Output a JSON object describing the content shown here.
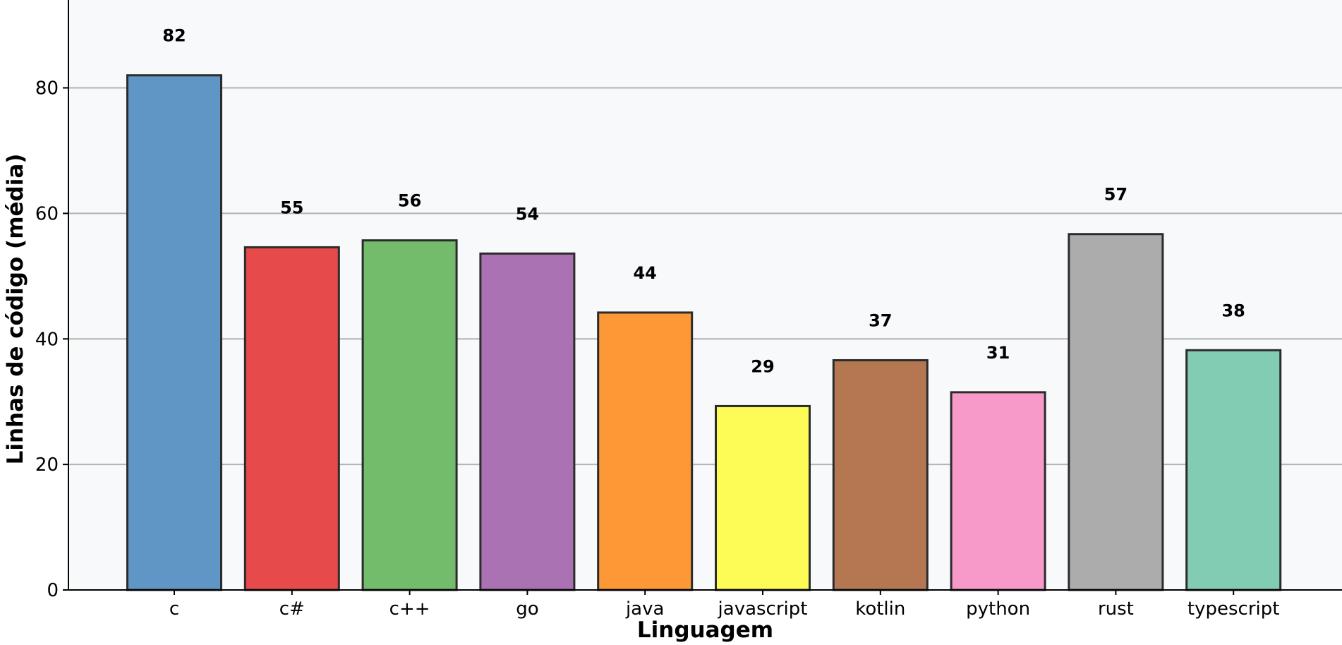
{
  "chart_data": {
    "type": "bar",
    "title": "",
    "xlabel": "Linguagem",
    "ylabel": "Linhas de código (média)",
    "categories": [
      "c",
      "c#",
      "c++",
      "go",
      "java",
      "javascript",
      "kotlin",
      "python",
      "rust",
      "typescript"
    ],
    "values": [
      82,
      54.6,
      55.7,
      53.6,
      44.2,
      29.3,
      36.6,
      31.5,
      56.7,
      38.2
    ],
    "value_labels": [
      "82",
      "55",
      "56",
      "54",
      "44",
      "29",
      "37",
      "31",
      "57",
      "38"
    ],
    "colors": [
      "#6096c6",
      "#e74a4a",
      "#72bc6c",
      "#aa72b2",
      "#fd9836",
      "#fdfc57",
      "#b57752",
      "#f799c9",
      "#acacac",
      "#82ccb4"
    ],
    "bar_edge_color": "#2b2b2b",
    "ylim": [
      0,
      94
    ],
    "yticks": [
      0,
      20,
      40,
      60,
      80
    ],
    "grid": "horizontal",
    "plot_background": "#f8f9fb",
    "legend": "none"
  }
}
